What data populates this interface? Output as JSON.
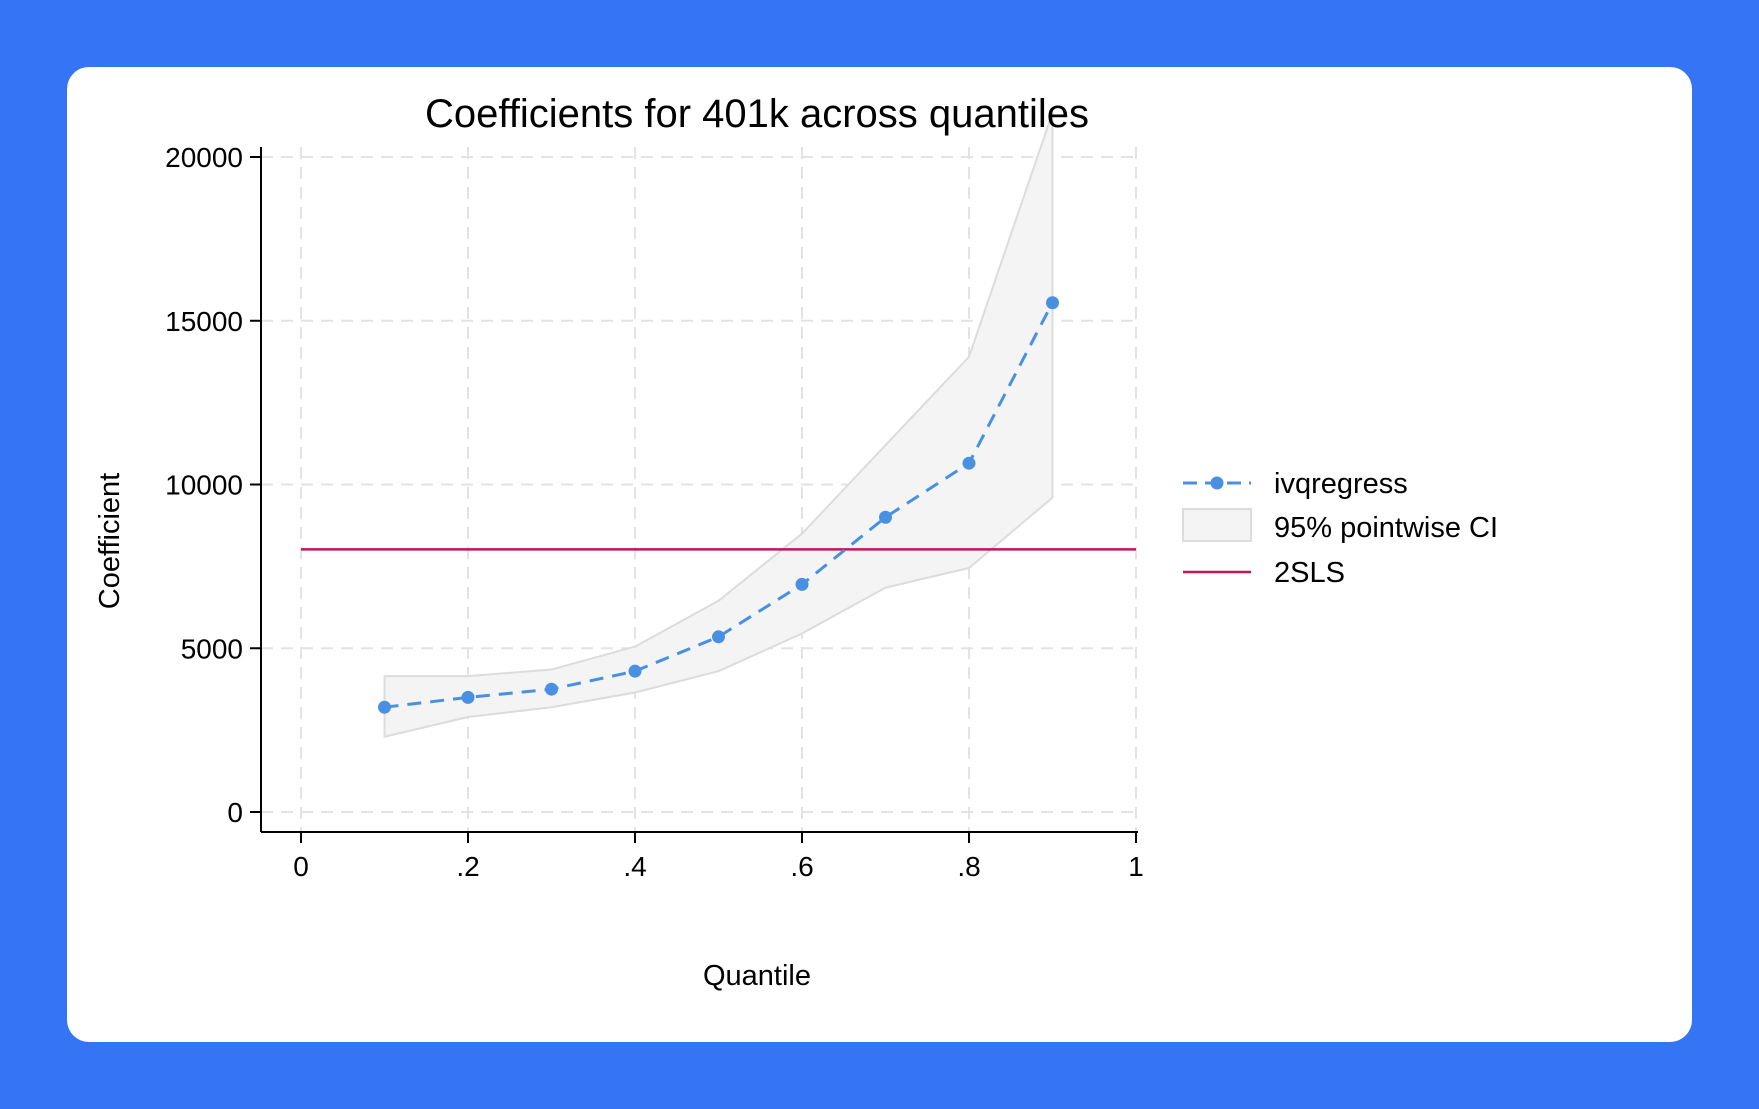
{
  "chart_data": {
    "type": "line",
    "title": "Coefficients for 401k across quantiles",
    "xlabel": "Quantile",
    "ylabel": "Coefficient",
    "xlim": [
      0,
      1
    ],
    "ylim": [
      0,
      22000
    ],
    "x_ticks": [
      0,
      0.2,
      0.4,
      0.6,
      0.8,
      1
    ],
    "x_tick_labels": [
      "0",
      ".2",
      ".4",
      ".6",
      ".8",
      "1"
    ],
    "y_ticks": [
      0,
      5000,
      10000,
      15000,
      20000
    ],
    "y_tick_labels": [
      "0",
      "5000",
      "10000",
      "15000",
      "20000"
    ],
    "grid": true,
    "legend_position": "right",
    "x": [
      0.1,
      0.2,
      0.3,
      0.4,
      0.5,
      0.6,
      0.7,
      0.8,
      0.9
    ],
    "series": [
      {
        "name": "ivqregress",
        "style": "dashed-line-markers",
        "color": "#4a90e2",
        "values": [
          3200,
          3500,
          3750,
          4300,
          5350,
          6950,
          9000,
          10650,
          15550
        ]
      },
      {
        "name": "95% pointwise CI",
        "style": "band",
        "color": "#dcdcdc",
        "lower": [
          2300,
          2900,
          3200,
          3650,
          4300,
          5450,
          6850,
          7450,
          9600
        ],
        "upper": [
          4150,
          4150,
          4350,
          5050,
          6450,
          8500,
          11200,
          13900,
          21350
        ]
      },
      {
        "name": "2SLS",
        "style": "hline",
        "color": "#c4145a",
        "value": 8020
      }
    ]
  }
}
